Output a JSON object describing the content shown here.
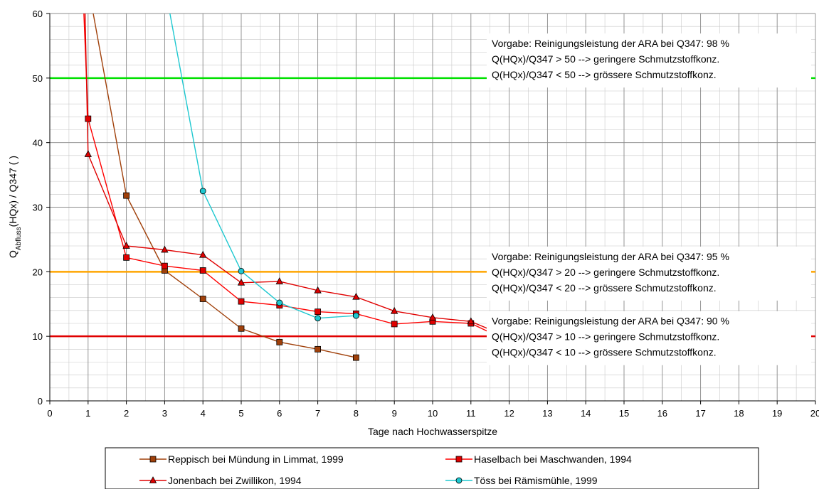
{
  "chart_data": {
    "type": "line",
    "title": "",
    "xlabel": "Tage nach Hochwasserspitze",
    "ylabel_main": "Q",
    "ylabel_sub": "Abfluss",
    "ylabel_rest": "(HQx) / Q347 ( )",
    "xlim": [
      0,
      20
    ],
    "ylim": [
      0,
      60
    ],
    "x_ticks": [
      0,
      1,
      2,
      3,
      4,
      5,
      6,
      7,
      8,
      9,
      10,
      11,
      12,
      13,
      14,
      15,
      16,
      17,
      18,
      19,
      20
    ],
    "y_ticks": [
      0,
      10,
      20,
      30,
      40,
      50,
      60
    ],
    "x_minor_step": 0.5,
    "y_minor_step": 2,
    "grid": true,
    "legend_position": "bottom",
    "thresholds": [
      {
        "value": 50,
        "color": "#00e000",
        "lines": [
          "Vorgabe: Reinigungsleistung der ARA bei Q347: 98 %",
          "Q(HQx)/Q347 > 50 --> geringere Schmutzstoffkonz.",
          "Q(HQx)/Q347 < 50 --> grössere Schmutzstoffkonz."
        ]
      },
      {
        "value": 20,
        "color": "#ffa500",
        "lines": [
          "Vorgabe: Reinigungsleistung der ARA bei Q347: 95 %",
          "Q(HQx)/Q347 > 20 --> geringere Schmutzstoffkonz.",
          "Q(HQx)/Q347 < 20 --> grössere Schmutzstoffkonz."
        ]
      },
      {
        "value": 10,
        "color": "#e00000",
        "lines": [
          "Vorgabe: Reinigungsleistung der ARA bei Q347: 90 %",
          "Q(HQx)/Q347 > 10 --> geringere Schmutzstoffkonz.",
          "Q(HQx)/Q347 < 10 --> grössere Schmutzstoffkonz."
        ]
      }
    ],
    "series": [
      {
        "name": "Reppisch bei Mündung in Limmat, 1999",
        "color": "#a0400a",
        "marker": "square",
        "marker_fill": "#a0400a",
        "line_only": [
          {
            "x": 0.95,
            "y": 66
          }
        ],
        "points": [
          {
            "x": 2,
            "y": 31.8
          },
          {
            "x": 3,
            "y": 20.2
          },
          {
            "x": 4,
            "y": 15.8
          },
          {
            "x": 5,
            "y": 11.2
          },
          {
            "x": 6,
            "y": 9.1
          },
          {
            "x": 7,
            "y": 8.0
          },
          {
            "x": 8,
            "y": 6.7
          }
        ]
      },
      {
        "name": "Haselbach bei Maschwanden, 1994",
        "color": "#ff0000",
        "marker": "square",
        "marker_fill": "#e00000",
        "line_only": [
          {
            "x": 0.85,
            "y": 66
          }
        ],
        "points": [
          {
            "x": 1,
            "y": 43.7
          },
          {
            "x": 2,
            "y": 22.2
          },
          {
            "x": 3,
            "y": 20.9
          },
          {
            "x": 4,
            "y": 20.2
          },
          {
            "x": 5,
            "y": 15.4
          },
          {
            "x": 6,
            "y": 14.8
          },
          {
            "x": 7,
            "y": 13.8
          },
          {
            "x": 8,
            "y": 13.5
          },
          {
            "x": 9,
            "y": 11.9
          },
          {
            "x": 10,
            "y": 12.3
          },
          {
            "x": 11,
            "y": 12.0
          }
        ],
        "line_tail": [
          {
            "x": 11.6,
            "y": 10.3
          }
        ]
      },
      {
        "name": "Jonenbach bei Zwillikon, 1994",
        "color": "#e00000",
        "marker": "triangle",
        "marker_fill": "#e00000",
        "line_only": [
          {
            "x": 0.9,
            "y": 66
          }
        ],
        "points": [
          {
            "x": 1,
            "y": 38.2
          },
          {
            "x": 2,
            "y": 24.0
          },
          {
            "x": 3,
            "y": 23.4
          },
          {
            "x": 4,
            "y": 22.6
          },
          {
            "x": 5,
            "y": 18.3
          },
          {
            "x": 6,
            "y": 18.5
          },
          {
            "x": 7,
            "y": 17.1
          },
          {
            "x": 8,
            "y": 16.1
          },
          {
            "x": 9,
            "y": 13.9
          },
          {
            "x": 10,
            "y": 12.9
          },
          {
            "x": 11,
            "y": 12.3
          }
        ],
        "line_tail": [
          {
            "x": 11.6,
            "y": 10.8
          }
        ]
      },
      {
        "name": "Töss bei Rämismühle, 1999",
        "color": "#1ec8d0",
        "marker": "circle",
        "marker_fill": "#1ec8d0",
        "line_only": [
          {
            "x": 2.95,
            "y": 66
          }
        ],
        "points": [
          {
            "x": 4,
            "y": 32.5
          },
          {
            "x": 5,
            "y": 20.1
          },
          {
            "x": 6,
            "y": 15.2
          },
          {
            "x": 7,
            "y": 12.8
          },
          {
            "x": 8,
            "y": 13.2
          }
        ]
      }
    ]
  }
}
